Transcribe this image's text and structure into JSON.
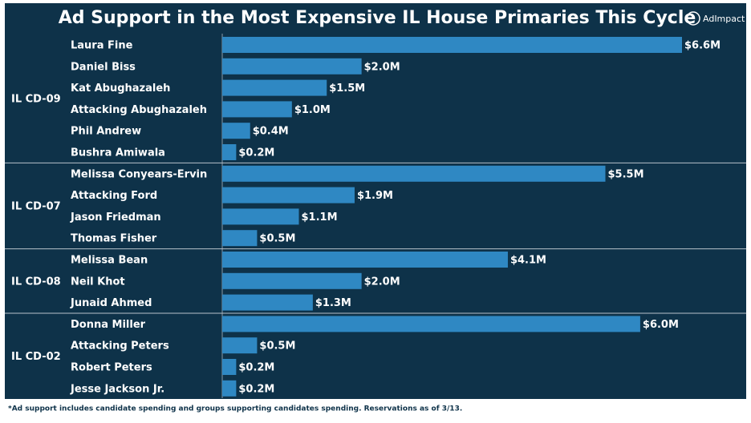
{
  "chart_data": {
    "type": "bar",
    "title": "Ad Support in the Most Expensive IL House Primaries This Cycle",
    "logo": "AdImpact",
    "note": "*Ad support includes candidate spending and groups supporting candidates spending. Reservations as of 3/13.",
    "color": "#2f88c3",
    "groups": [
      {
        "name": "IL CD-09",
        "categories": [
          "Laura Fine",
          "Daniel Biss",
          "Kat Abughazaleh",
          "Attacking Abughazaleh",
          "Phil Andrew",
          "Bushra Amiwala"
        ],
        "values": [
          6.6,
          2.0,
          1.5,
          1.0,
          0.4,
          0.2
        ],
        "value_labels": [
          "$6.6M",
          "$2.0M",
          "$1.5M",
          "$1.0M",
          "$0.4M",
          "$0.2M"
        ]
      },
      {
        "name": "IL CD-07",
        "categories": [
          "Melissa Conyears-Ervin",
          "Attacking Ford",
          "Jason Friedman",
          "Thomas Fisher"
        ],
        "values": [
          5.5,
          1.9,
          1.1,
          0.5
        ],
        "value_labels": [
          "$5.5M",
          "$1.9M",
          "$1.1M",
          "$0.5M"
        ]
      },
      {
        "name": "IL CD-08",
        "categories": [
          "Melissa Bean",
          "Neil Khot",
          "Junaid Ahmed"
        ],
        "values": [
          4.1,
          2.0,
          1.3
        ],
        "value_labels": [
          "$4.1M",
          "$2.0M",
          "$1.3M"
        ]
      },
      {
        "name": "IL CD-02",
        "categories": [
          "Donna Miller",
          "Attacking Peters",
          "Robert Peters",
          "Jesse Jackson Jr."
        ],
        "values": [
          6.0,
          0.5,
          0.2,
          0.2
        ],
        "value_labels": [
          "$6.0M",
          "$0.5M",
          "$0.2M",
          "$0.2M"
        ]
      }
    ]
  }
}
